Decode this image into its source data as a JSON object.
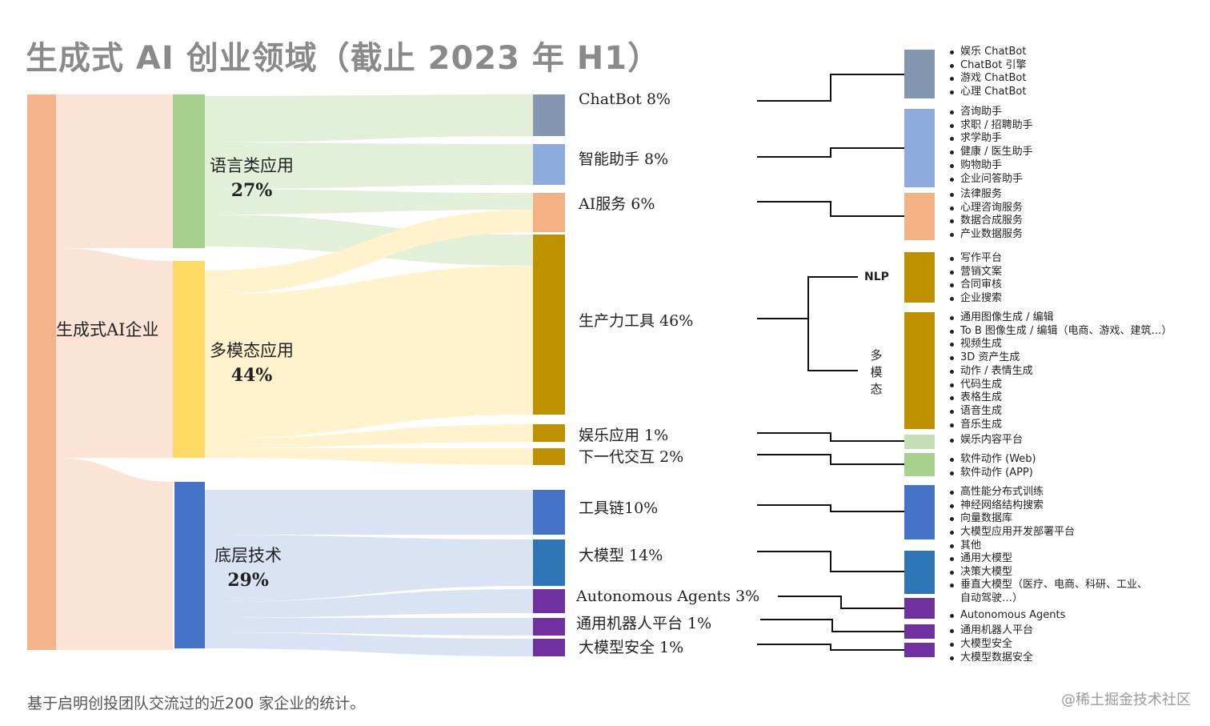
{
  "title": "生成式 AI 创业领域（截止 2023 年 H1）",
  "footnote": "基于启明创投团队交流过的近200 家企业的统计。",
  "watermark": "@稀土掘金技术社区",
  "colors": {
    "root": "#f5b38b",
    "flow_root": "#fbe3d6",
    "language": "#a8d08d",
    "flow_language": "#e2f0d9",
    "multimodal": "#ffd966",
    "flow_multimodal": "#fff2cc",
    "base": "#4472c4",
    "flow_base": "#dae3f3",
    "chatbot": "#8497b0",
    "assistant": "#8faadc",
    "ai_service": "#f4b183",
    "productivity": "#bf9000",
    "entertainment_sub": "#c5e0b4",
    "next_interaction_sub": "#a9d18e",
    "toolchain": "#4472c4",
    "big_model": "#2e75b6",
    "agents": "#7030a0"
  },
  "root": {
    "label": "生成式AI企业"
  },
  "categories": [
    {
      "id": "language",
      "label": "语言类应用",
      "pct": "27%"
    },
    {
      "id": "multimodal",
      "label": "多模态应用",
      "pct": "44%"
    },
    {
      "id": "base",
      "label": "底层技术",
      "pct": "29%"
    }
  ],
  "leaves": [
    {
      "id": "chatbot",
      "label": "ChatBot 8%"
    },
    {
      "id": "assistant",
      "label": "智能助手 8%"
    },
    {
      "id": "ai_service",
      "label": "AI服务 6%"
    },
    {
      "id": "productivity",
      "label": "生产力工具 46%"
    },
    {
      "id": "entertainment",
      "label": "娱乐应用 1%"
    },
    {
      "id": "next_interaction",
      "label": "下一代交互 2%"
    },
    {
      "id": "toolchain",
      "label": "工具链10%"
    },
    {
      "id": "big_model",
      "label": "大模型 14%"
    },
    {
      "id": "agents",
      "label": "Autonomous Agents 3%"
    },
    {
      "id": "robot",
      "label": "通用机器人平台 1%"
    },
    {
      "id": "safety",
      "label": "大模型安全 1%"
    }
  ],
  "branches": {
    "nlp": "NLP",
    "multimodal": "多模态"
  },
  "groups": [
    {
      "id": "g_chatbot",
      "items": [
        "娱乐 ChatBot",
        "ChatBot 引擎",
        "游戏 ChatBot",
        "心理 ChatBot"
      ]
    },
    {
      "id": "g_assistant",
      "items": [
        "咨询助手",
        "求职 / 招聘助手",
        "求学助手",
        "健康 / 医生助手",
        "购物助手",
        "企业问答助手"
      ]
    },
    {
      "id": "g_service",
      "items": [
        "法律服务",
        "心理咨询服务",
        "数据合成服务",
        "产业数据服务"
      ]
    },
    {
      "id": "g_nlp",
      "items": [
        "写作平台",
        "营销文案",
        "合同审核",
        "企业搜索"
      ]
    },
    {
      "id": "g_multi",
      "items": [
        "通用图像生成 / 编辑",
        "To B 图像生成 / 编辑（电商、游戏、建筑…）",
        "视频生成",
        "3D 资产生成",
        "动作 / 表情生成",
        "代码生成",
        "表格生成",
        "语音生成",
        "音乐生成"
      ]
    },
    {
      "id": "g_ent",
      "items": [
        "娱乐内容平台"
      ]
    },
    {
      "id": "g_next",
      "items": [
        "软件动作 (Web)",
        "软件动作 (APP)"
      ]
    },
    {
      "id": "g_tool",
      "items": [
        "高性能分布式训练",
        "神经网络结构搜索",
        "向量数据库",
        "大模型应用开发部署平台",
        "其他"
      ]
    },
    {
      "id": "g_model",
      "items": [
        "通用大模型",
        "决策大模型",
        "垂直大模型（医疗、电商、科研、工业、",
        "自动驾驶…）"
      ]
    },
    {
      "id": "g_agents",
      "items": [
        "Autonomous Agents"
      ]
    },
    {
      "id": "g_robot",
      "items": [
        "通用机器人平台"
      ]
    },
    {
      "id": "g_safety",
      "items": [
        "大模型安全",
        "大模型数据安全"
      ]
    }
  ]
}
